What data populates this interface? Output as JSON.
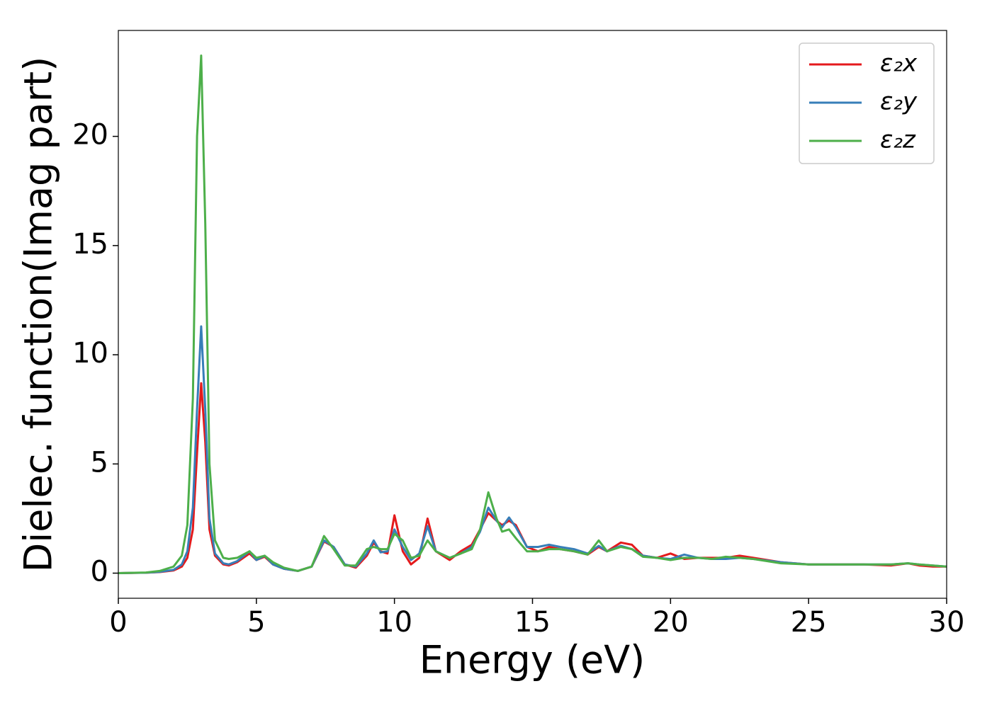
{
  "chart_data": {
    "type": "line",
    "x_label": "Energy (eV)",
    "y_label": "Dielec. function(Imag part)",
    "x": [
      0,
      1,
      1.5,
      2,
      2.3,
      2.5,
      2.7,
      2.85,
      3.0,
      3.15,
      3.3,
      3.5,
      3.8,
      4.0,
      4.3,
      4.75,
      5.0,
      5.3,
      5.6,
      6.0,
      6.5,
      7.0,
      7.45,
      7.8,
      8.2,
      8.6,
      9.0,
      9.25,
      9.5,
      9.75,
      10.0,
      10.3,
      10.6,
      10.9,
      11.2,
      11.5,
      12.0,
      12.4,
      12.8,
      13.1,
      13.4,
      13.7,
      13.9,
      14.15,
      14.4,
      14.8,
      15.2,
      15.6,
      16.0,
      16.5,
      17.0,
      17.4,
      17.7,
      18.2,
      18.6,
      19.0,
      19.5,
      20.0,
      20.5,
      21.0,
      21.5,
      22.0,
      22.5,
      23.0,
      24.0,
      25.0,
      26.0,
      27.0,
      28.0,
      28.6,
      29.0,
      29.5,
      30
    ],
    "series": [
      {
        "name": "ε₂x",
        "color": "#e41a1c",
        "values": [
          0,
          0.02,
          0.05,
          0.12,
          0.3,
          0.7,
          2.0,
          5.5,
          8.7,
          6.0,
          2.0,
          0.8,
          0.4,
          0.35,
          0.5,
          0.9,
          0.6,
          0.75,
          0.4,
          0.2,
          0.1,
          0.3,
          1.45,
          1.2,
          0.4,
          0.25,
          0.8,
          1.4,
          1.0,
          0.9,
          2.65,
          1.0,
          0.4,
          0.7,
          2.5,
          1.0,
          0.6,
          1.0,
          1.3,
          2.0,
          2.75,
          2.4,
          2.2,
          2.4,
          2.2,
          1.2,
          1.0,
          1.2,
          1.1,
          1.0,
          0.85,
          1.2,
          1.0,
          1.4,
          1.3,
          0.8,
          0.7,
          0.9,
          0.65,
          0.7,
          0.7,
          0.7,
          0.8,
          0.7,
          0.5,
          0.4,
          0.4,
          0.4,
          0.35,
          0.45,
          0.35,
          0.3,
          0.3
        ]
      },
      {
        "name": "ε₂y",
        "color": "#377eb8",
        "values": [
          0,
          0.02,
          0.06,
          0.15,
          0.4,
          1.0,
          3.0,
          7.5,
          11.3,
          7.5,
          2.5,
          0.9,
          0.45,
          0.4,
          0.55,
          1.0,
          0.6,
          0.8,
          0.4,
          0.2,
          0.1,
          0.3,
          1.5,
          1.2,
          0.4,
          0.3,
          0.9,
          1.5,
          0.95,
          1.0,
          2.0,
          1.2,
          0.6,
          0.9,
          2.15,
          1.0,
          0.7,
          0.9,
          1.2,
          1.9,
          3.0,
          2.4,
          2.1,
          2.55,
          2.1,
          1.2,
          1.2,
          1.3,
          1.2,
          1.1,
          0.9,
          1.25,
          1.0,
          1.25,
          1.1,
          0.8,
          0.7,
          0.65,
          0.85,
          0.7,
          0.65,
          0.65,
          0.7,
          0.65,
          0.5,
          0.4,
          0.4,
          0.4,
          0.4,
          0.45,
          0.4,
          0.35,
          0.3
        ]
      },
      {
        "name": "ε₂z",
        "color": "#4daf4a",
        "values": [
          0,
          0.03,
          0.1,
          0.3,
          0.8,
          2.2,
          8.0,
          20,
          23.7,
          16,
          5.0,
          1.5,
          0.7,
          0.65,
          0.7,
          1.0,
          0.7,
          0.8,
          0.5,
          0.25,
          0.1,
          0.3,
          1.7,
          1.1,
          0.35,
          0.35,
          1.1,
          1.2,
          1.1,
          1.1,
          1.8,
          1.5,
          0.7,
          0.8,
          1.5,
          1.0,
          0.7,
          0.9,
          1.1,
          2.0,
          3.7,
          2.5,
          1.9,
          2.0,
          1.6,
          1.0,
          1.0,
          1.1,
          1.1,
          1.0,
          0.85,
          1.5,
          1.0,
          1.2,
          1.1,
          0.75,
          0.7,
          0.6,
          0.7,
          0.7,
          0.65,
          0.75,
          0.7,
          0.65,
          0.45,
          0.4,
          0.4,
          0.4,
          0.4,
          0.45,
          0.4,
          0.35,
          0.3
        ]
      }
    ],
    "xlim": [
      0,
      30
    ],
    "xticks": [
      0,
      5,
      10,
      15,
      20,
      25,
      30
    ],
    "ylim": [
      -1.15,
      24.85
    ],
    "yticks": [
      0,
      5,
      10,
      15,
      20
    ],
    "grid": false,
    "legend": "upper right"
  }
}
